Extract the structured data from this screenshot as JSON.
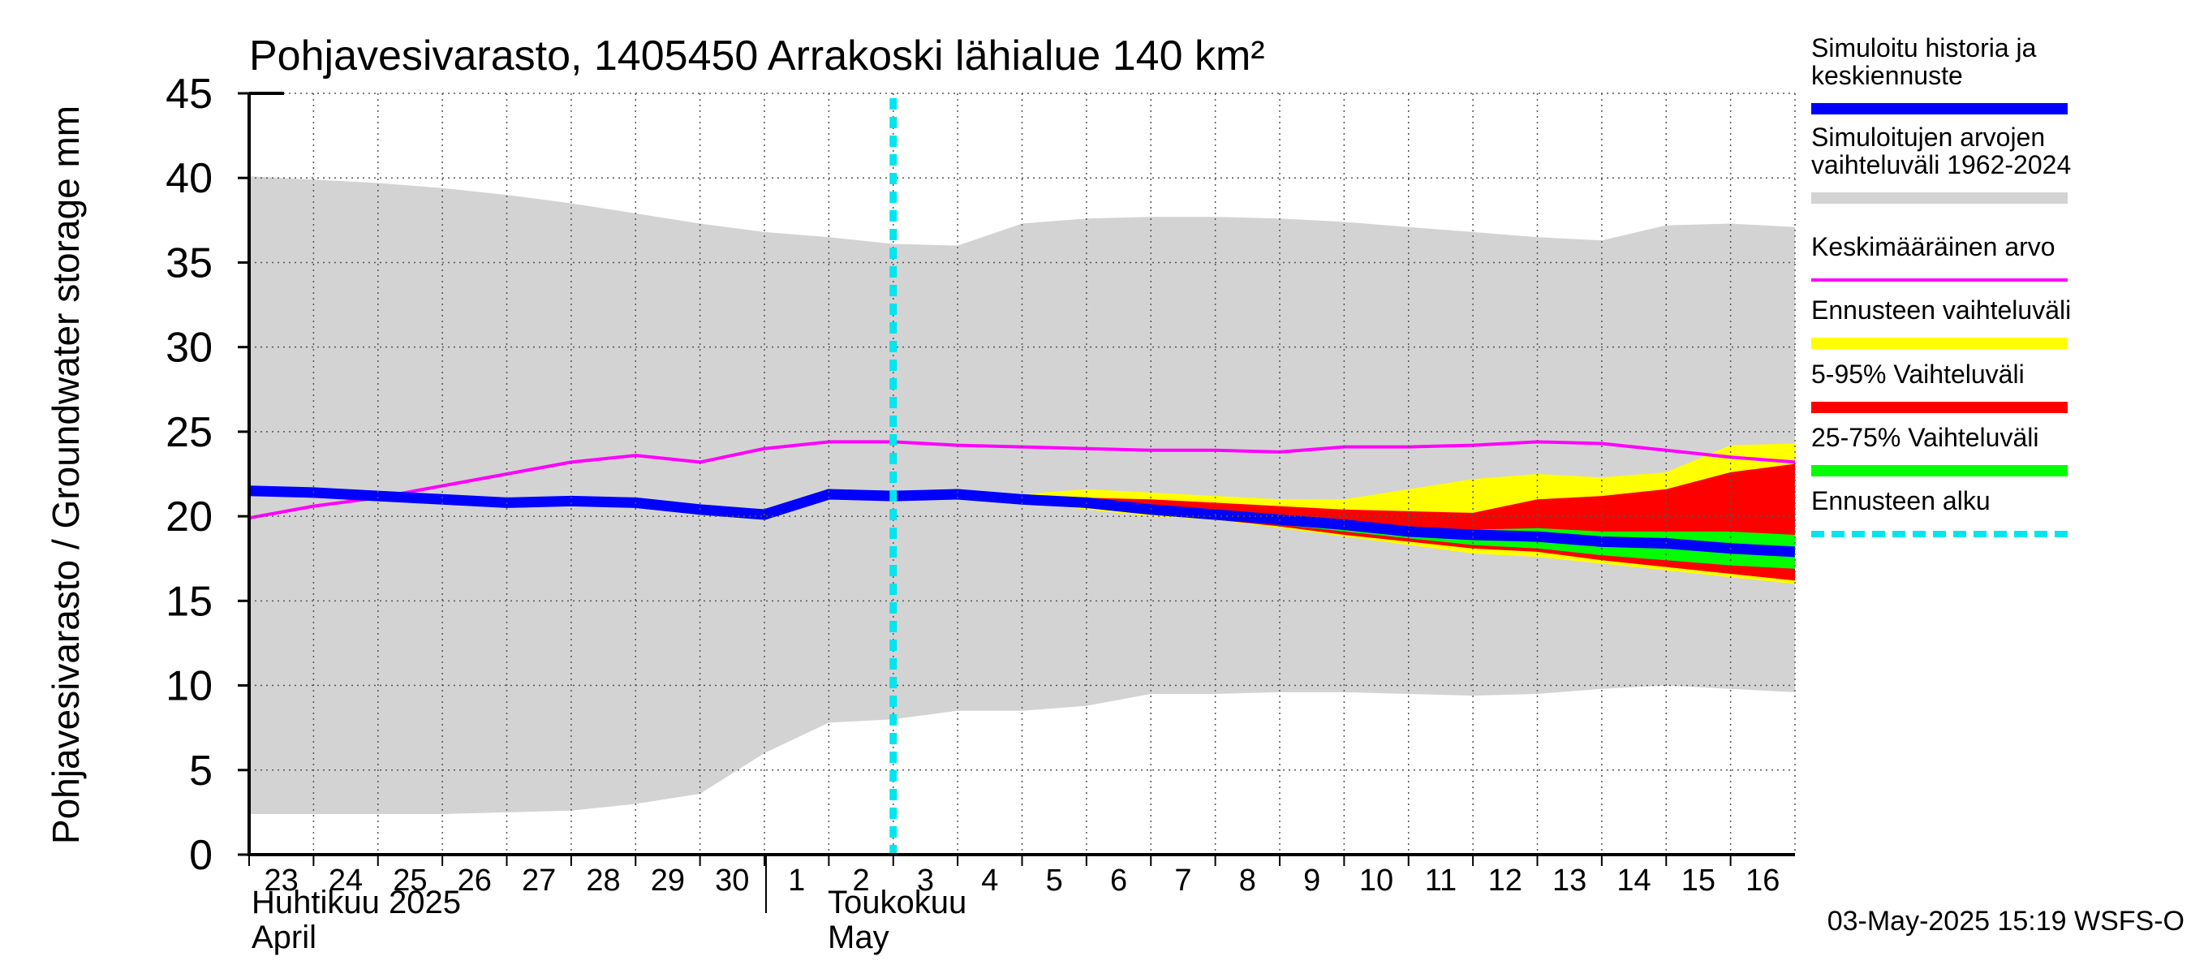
{
  "chart_data": {
    "type": "area",
    "title": "Pohjavesivarasto, 1405450 Arrakoski lähialue 140 km²",
    "ylabel": "Pohjavesivarasto / Groundwater storage   mm",
    "ylim": [
      0,
      45
    ],
    "yticks": [
      0,
      5,
      10,
      15,
      20,
      25,
      30,
      35,
      40,
      45
    ],
    "x_range": [
      0,
      24
    ],
    "x_labels": [
      "23",
      "24",
      "25",
      "26",
      "27",
      "28",
      "29",
      "30",
      "1",
      "2",
      "3",
      "4",
      "5",
      "6",
      "7",
      "8",
      "9",
      "10",
      "11",
      "12",
      "13",
      "14",
      "15",
      "16"
    ],
    "month_labels": [
      {
        "fi": "Huhtikuu  2025",
        "en": "April"
      },
      {
        "fi": "Toukokuu",
        "en": "May"
      }
    ],
    "forecast_start_day": 10,
    "timestamp": "03-May-2025 15:19 WSFS-O",
    "grid": true,
    "legend": [
      {
        "label": "Simuloitu historia ja keskiennuste",
        "color": "#0000ff",
        "style": "thick"
      },
      {
        "label": "Simuloitujen arvojen vaihteluväli 1962-2024",
        "color": "#d3d3d3",
        "style": "thick"
      },
      {
        "label": "Keskimääräinen arvo",
        "color": "#ff00ff",
        "style": "thin"
      },
      {
        "label": "Ennusteen vaihteluväli",
        "color": "#ffff00",
        "style": "thick"
      },
      {
        "label": "5-95% Vaihteluväli",
        "color": "#ff0000",
        "style": "thick"
      },
      {
        "label": "25-75% Vaihteluväli",
        "color": "#00ff00",
        "style": "thick"
      },
      {
        "label": "Ennusteen alku",
        "color": "#00e5ee",
        "style": "dashed"
      }
    ],
    "series": [
      {
        "name": "Simuloitujen arvojen vaihteluväli 1962-2024",
        "kind": "band",
        "color": "#d3d3d3",
        "x": [
          0,
          1,
          2,
          3,
          4,
          5,
          6,
          7,
          8,
          9,
          10,
          11,
          12,
          13,
          14,
          15,
          16,
          17,
          18,
          19,
          20,
          21,
          22,
          23,
          24
        ],
        "upper": [
          40.1,
          39.9,
          39.7,
          39.4,
          39.0,
          38.5,
          37.9,
          37.3,
          36.8,
          36.5,
          36.1,
          36.0,
          37.3,
          37.6,
          37.7,
          37.7,
          37.6,
          37.4,
          37.1,
          36.8,
          36.5,
          36.3,
          37.2,
          37.3,
          37.1
        ],
        "lower": [
          2.4,
          2.4,
          2.4,
          2.4,
          2.5,
          2.6,
          3.0,
          3.6,
          6.0,
          7.8,
          8.0,
          8.5,
          8.5,
          8.8,
          9.5,
          9.5,
          9.6,
          9.6,
          9.5,
          9.4,
          9.5,
          9.8,
          10.0,
          9.8,
          9.6
        ]
      },
      {
        "name": "Ennusteen vaihteluväli",
        "kind": "band",
        "color": "#ffff00",
        "x": [
          10,
          11,
          12,
          13,
          14,
          15,
          16,
          17,
          18,
          19,
          20,
          21,
          22,
          23,
          24
        ],
        "upper": [
          21.5,
          21.5,
          21.3,
          21.6,
          21.4,
          21.2,
          21.0,
          21.0,
          21.6,
          22.2,
          22.5,
          22.3,
          22.6,
          24.2,
          24.3
        ],
        "lower": [
          21.0,
          21.0,
          20.8,
          20.4,
          20.0,
          19.8,
          19.3,
          18.8,
          18.3,
          17.8,
          17.6,
          17.2,
          16.8,
          16.4,
          16.0
        ]
      },
      {
        "name": "5-95% Vaihteluväli",
        "kind": "band",
        "color": "#ff0000",
        "x": [
          10,
          11,
          12,
          13,
          14,
          15,
          16,
          17,
          18,
          19,
          20,
          21,
          22,
          23,
          24
        ],
        "upper": [
          21.3,
          21.3,
          21.0,
          21.1,
          21.0,
          20.8,
          20.6,
          20.4,
          20.3,
          20.2,
          21.0,
          21.2,
          21.6,
          22.6,
          23.1
        ],
        "lower": [
          21.1,
          21.1,
          20.9,
          20.5,
          20.1,
          19.8,
          19.4,
          18.9,
          18.5,
          18.1,
          17.9,
          17.4,
          17.0,
          16.6,
          16.2
        ]
      },
      {
        "name": "25-75% Vaihteluväli",
        "kind": "band",
        "color": "#00ff00",
        "x": [
          10,
          11,
          12,
          13,
          14,
          15,
          16,
          17,
          18,
          19,
          20,
          21,
          22,
          23,
          24
        ],
        "upper": [
          21.2,
          21.2,
          20.9,
          20.7,
          20.4,
          20.1,
          19.8,
          19.5,
          19.3,
          19.2,
          19.3,
          19.1,
          19.1,
          19.1,
          18.9
        ],
        "lower": [
          21.2,
          21.2,
          20.9,
          20.5,
          20.2,
          19.9,
          19.5,
          19.1,
          18.7,
          18.3,
          18.1,
          17.7,
          17.4,
          17.1,
          16.9
        ]
      },
      {
        "name": "Keskimääräinen arvo",
        "kind": "line",
        "color": "#ff00ff",
        "x": [
          0,
          1,
          2,
          3,
          4,
          5,
          6,
          7,
          8,
          9,
          10,
          11,
          12,
          13,
          14,
          15,
          16,
          17,
          18,
          19,
          20,
          21,
          22,
          23,
          24
        ],
        "values": [
          19.9,
          20.6,
          21.1,
          21.8,
          22.5,
          23.2,
          23.6,
          23.2,
          24.0,
          24.4,
          24.4,
          24.2,
          24.1,
          24.0,
          23.9,
          23.9,
          23.8,
          24.1,
          24.1,
          24.2,
          24.4,
          24.3,
          23.9,
          23.5,
          23.2
        ]
      },
      {
        "name": "Simuloitu historia ja keskiennuste",
        "kind": "line",
        "color": "#0000ff",
        "x": [
          0,
          1,
          2,
          3,
          4,
          5,
          6,
          7,
          8,
          9,
          10,
          11,
          12,
          13,
          14,
          15,
          16,
          17,
          18,
          19,
          20,
          21,
          22,
          23,
          24
        ],
        "values": [
          21.5,
          21.4,
          21.2,
          21.0,
          20.8,
          20.9,
          20.8,
          20.4,
          20.1,
          21.3,
          21.2,
          21.3,
          21.0,
          20.8,
          20.4,
          20.1,
          19.8,
          19.5,
          19.1,
          18.9,
          18.8,
          18.5,
          18.4,
          18.1,
          17.9
        ]
      }
    ]
  }
}
